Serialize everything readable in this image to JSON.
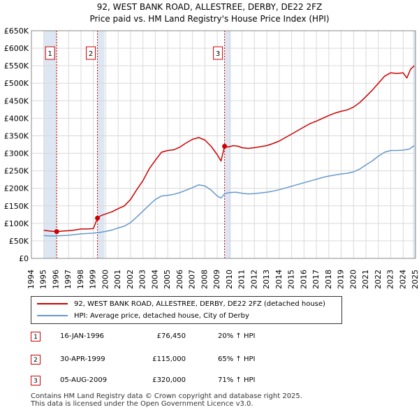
{
  "header": {
    "title_line1": "92, WEST BANK ROAD, ALLESTREE, DERBY, DE22 2FZ",
    "title_line2": "Price paid vs. HM Land Registry's House Price Index (HPI)"
  },
  "colors": {
    "property": "#cc0000",
    "hpi": "#6699cc",
    "shade": "#dde6f3",
    "grid": "#d9d9d9",
    "marker_border": "#cc0000"
  },
  "chart_data": {
    "type": "line",
    "title": "92, WEST BANK ROAD, ALLESTREE, DERBY, DE22 2FZ",
    "subtitle": "Price paid vs. HM Land Registry's House Price Index (HPI)",
    "xlim": [
      1994,
      2025
    ],
    "ylim": [
      0,
      650000
    ],
    "x_ticks": [
      1994,
      1995,
      1996,
      1997,
      1998,
      1999,
      2000,
      2001,
      2002,
      2003,
      2004,
      2005,
      2006,
      2007,
      2008,
      2009,
      2010,
      2011,
      2012,
      2013,
      2014,
      2015,
      2016,
      2017,
      2018,
      2019,
      2020,
      2021,
      2022,
      2023,
      2024,
      2025
    ],
    "y_ticks": [
      {
        "value": 0,
        "label": "£0"
      },
      {
        "value": 50000,
        "label": "£50K"
      },
      {
        "value": 100000,
        "label": "£100K"
      },
      {
        "value": 150000,
        "label": "£150K"
      },
      {
        "value": 200000,
        "label": "£200K"
      },
      {
        "value": 250000,
        "label": "£250K"
      },
      {
        "value": 300000,
        "label": "£300K"
      },
      {
        "value": 350000,
        "label": "£350K"
      },
      {
        "value": 400000,
        "label": "£400K"
      },
      {
        "value": 450000,
        "label": "£450K"
      },
      {
        "value": 500000,
        "label": "£500K"
      },
      {
        "value": 550000,
        "label": "£550K"
      },
      {
        "value": 600000,
        "label": "£600K"
      },
      {
        "value": 650000,
        "label": "£650K"
      }
    ],
    "shaded_periods": [
      [
        1995.0,
        1996.04
      ],
      [
        1999.33,
        1999.9
      ],
      [
        2009.59,
        2010.1
      ],
      [
        2024.8,
        2025.0
      ]
    ],
    "series": [
      {
        "name": "92, WEST BANK ROAD, ALLESTREE, DERBY, DE22 2FZ (detached house)",
        "color": "#cc0000",
        "points": [
          [
            1995.0,
            80000
          ],
          [
            1995.5,
            78000
          ],
          [
            1996.04,
            76450
          ],
          [
            1996.5,
            78000
          ],
          [
            1997.0,
            79000
          ],
          [
            1997.5,
            81000
          ],
          [
            1998.0,
            84000
          ],
          [
            1998.5,
            84000
          ],
          [
            1999.0,
            85000
          ],
          [
            1999.33,
            115000
          ],
          [
            1999.6,
            122000
          ],
          [
            2000.0,
            127000
          ],
          [
            2000.5,
            133000
          ],
          [
            2001.0,
            142000
          ],
          [
            2001.5,
            150000
          ],
          [
            2002.0,
            168000
          ],
          [
            2002.5,
            196000
          ],
          [
            2003.0,
            222000
          ],
          [
            2003.5,
            255000
          ],
          [
            2004.0,
            280000
          ],
          [
            2004.5,
            303000
          ],
          [
            2005.0,
            308000
          ],
          [
            2005.5,
            310000
          ],
          [
            2006.0,
            318000
          ],
          [
            2006.5,
            330000
          ],
          [
            2007.0,
            340000
          ],
          [
            2007.5,
            345000
          ],
          [
            2008.0,
            338000
          ],
          [
            2008.5,
            320000
          ],
          [
            2009.0,
            296000
          ],
          [
            2009.3,
            278000
          ],
          [
            2009.59,
            320000
          ],
          [
            2009.9,
            318000
          ],
          [
            2010.3,
            322000
          ],
          [
            2010.7,
            320000
          ],
          [
            2011.0,
            316000
          ],
          [
            2011.5,
            314000
          ],
          [
            2012.0,
            316000
          ],
          [
            2012.5,
            319000
          ],
          [
            2013.0,
            322000
          ],
          [
            2013.5,
            328000
          ],
          [
            2014.0,
            335000
          ],
          [
            2014.5,
            345000
          ],
          [
            2015.0,
            355000
          ],
          [
            2015.5,
            365000
          ],
          [
            2016.0,
            375000
          ],
          [
            2016.5,
            385000
          ],
          [
            2017.0,
            392000
          ],
          [
            2017.5,
            400000
          ],
          [
            2018.0,
            408000
          ],
          [
            2018.5,
            415000
          ],
          [
            2019.0,
            420000
          ],
          [
            2019.5,
            424000
          ],
          [
            2020.0,
            432000
          ],
          [
            2020.5,
            445000
          ],
          [
            2021.0,
            462000
          ],
          [
            2021.5,
            480000
          ],
          [
            2022.0,
            500000
          ],
          [
            2022.5,
            520000
          ],
          [
            2023.0,
            530000
          ],
          [
            2023.5,
            528000
          ],
          [
            2024.0,
            530000
          ],
          [
            2024.3,
            515000
          ],
          [
            2024.6,
            540000
          ],
          [
            2024.9,
            550000
          ]
        ]
      },
      {
        "name": "HPI: Average price, detached house, City of Derby",
        "color": "#6699cc",
        "points": [
          [
            1995.0,
            65000
          ],
          [
            1995.5,
            64000
          ],
          [
            1996.0,
            64000
          ],
          [
            1996.5,
            65000
          ],
          [
            1997.0,
            66000
          ],
          [
            1997.5,
            68000
          ],
          [
            1998.0,
            70000
          ],
          [
            1998.5,
            71000
          ],
          [
            1999.0,
            72000
          ],
          [
            1999.5,
            74000
          ],
          [
            2000.0,
            77000
          ],
          [
            2000.5,
            81000
          ],
          [
            2001.0,
            87000
          ],
          [
            2001.5,
            92000
          ],
          [
            2002.0,
            102000
          ],
          [
            2002.5,
            118000
          ],
          [
            2003.0,
            135000
          ],
          [
            2003.5,
            152000
          ],
          [
            2004.0,
            168000
          ],
          [
            2004.5,
            178000
          ],
          [
            2005.0,
            180000
          ],
          [
            2005.5,
            183000
          ],
          [
            2006.0,
            188000
          ],
          [
            2006.5,
            195000
          ],
          [
            2007.0,
            202000
          ],
          [
            2007.5,
            210000
          ],
          [
            2008.0,
            207000
          ],
          [
            2008.5,
            195000
          ],
          [
            2009.0,
            178000
          ],
          [
            2009.3,
            172000
          ],
          [
            2009.6,
            185000
          ],
          [
            2010.0,
            188000
          ],
          [
            2010.5,
            189000
          ],
          [
            2011.0,
            186000
          ],
          [
            2011.5,
            184000
          ],
          [
            2012.0,
            185000
          ],
          [
            2012.5,
            187000
          ],
          [
            2013.0,
            189000
          ],
          [
            2013.5,
            192000
          ],
          [
            2014.0,
            196000
          ],
          [
            2014.5,
            201000
          ],
          [
            2015.0,
            206000
          ],
          [
            2015.5,
            211000
          ],
          [
            2016.0,
            216000
          ],
          [
            2016.5,
            221000
          ],
          [
            2017.0,
            226000
          ],
          [
            2017.5,
            231000
          ],
          [
            2018.0,
            235000
          ],
          [
            2018.5,
            238000
          ],
          [
            2019.0,
            241000
          ],
          [
            2019.5,
            243000
          ],
          [
            2020.0,
            247000
          ],
          [
            2020.5,
            255000
          ],
          [
            2021.0,
            267000
          ],
          [
            2021.5,
            278000
          ],
          [
            2022.0,
            292000
          ],
          [
            2022.5,
            303000
          ],
          [
            2023.0,
            308000
          ],
          [
            2023.5,
            308000
          ],
          [
            2024.0,
            309000
          ],
          [
            2024.5,
            312000
          ],
          [
            2024.9,
            322000
          ]
        ]
      }
    ],
    "sale_markers": [
      {
        "label": "1",
        "year": 1996.04,
        "price": 76450
      },
      {
        "label": "2",
        "year": 1999.33,
        "price": 115000
      },
      {
        "label": "3",
        "year": 2009.59,
        "price": 320000
      }
    ]
  },
  "legend": {
    "items": [
      {
        "label": "92, WEST BANK ROAD, ALLESTREE, DERBY, DE22 2FZ (detached house)"
      },
      {
        "label": "HPI: Average price, detached house, City of Derby"
      }
    ]
  },
  "transactions": [
    {
      "num": "1",
      "date": "16-JAN-1996",
      "price": "£76,450",
      "hpi": "20% ↑ HPI"
    },
    {
      "num": "2",
      "date": "30-APR-1999",
      "price": "£115,000",
      "hpi": "65% ↑ HPI"
    },
    {
      "num": "3",
      "date": "05-AUG-2009",
      "price": "£320,000",
      "hpi": "71% ↑ HPI"
    }
  ],
  "footer": {
    "line1": "Contains HM Land Registry data © Crown copyright and database right 2025.",
    "line2": "This data is licensed under the Open Government Licence v3.0."
  }
}
